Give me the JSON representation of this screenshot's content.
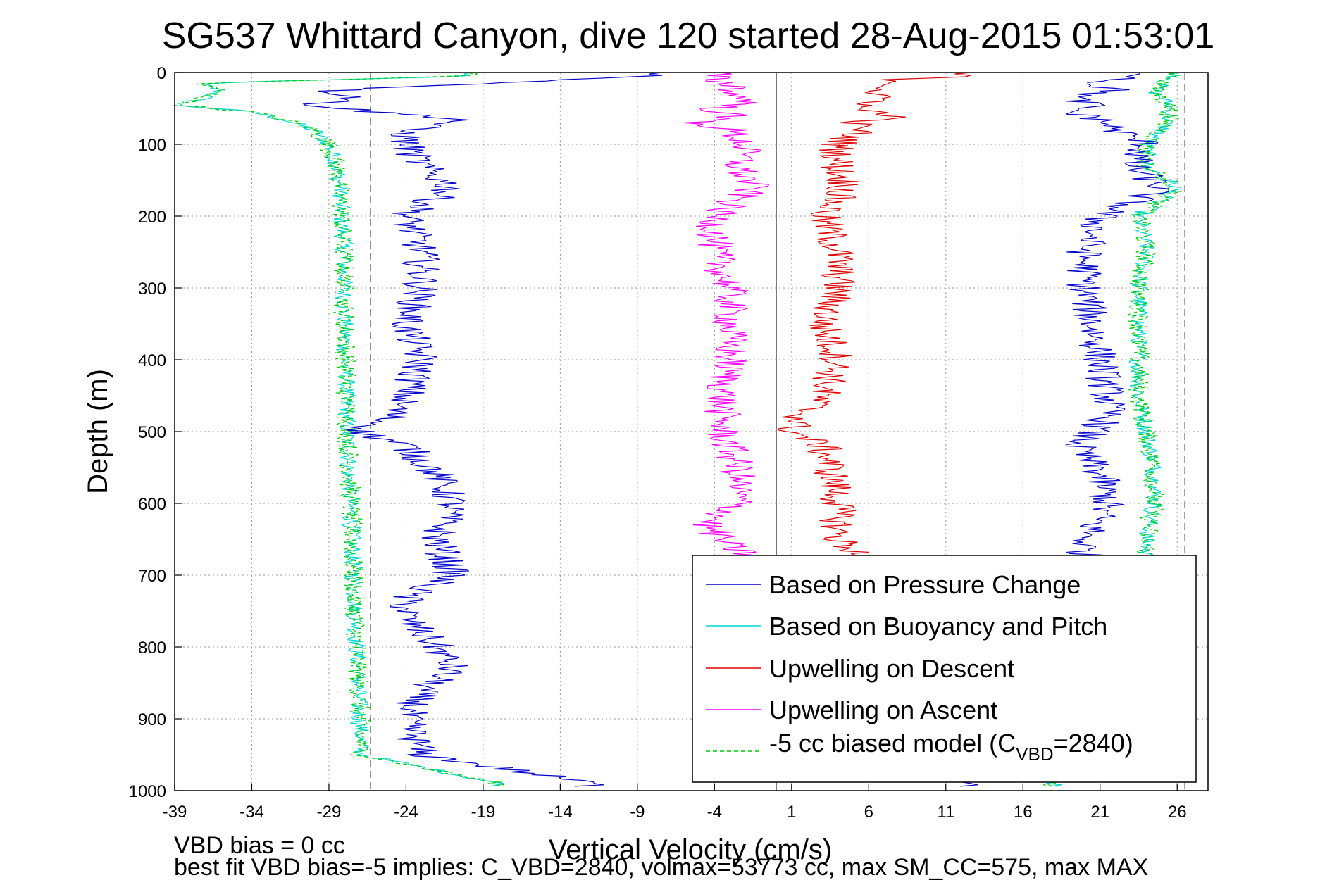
{
  "chart_data": {
    "type": "line",
    "title": "SG537 Whittard Canyon, dive 120 started 28-Aug-2015 01:53:01",
    "xlabel": "Vertical Velocity (cm/s)",
    "ylabel": "Depth (m)",
    "xlim": [
      -39,
      28
    ],
    "ylim": [
      0,
      1000
    ],
    "y_reversed": true,
    "grid": true,
    "x_ticks": [
      -39,
      -34,
      -29,
      -24,
      -19,
      -14,
      -9,
      -4,
      1,
      6,
      11,
      16,
      21,
      26
    ],
    "y_ticks": [
      0,
      100,
      200,
      300,
      400,
      500,
      600,
      700,
      800,
      900,
      1000
    ],
    "reference_lines": {
      "solid_x": 0,
      "dashed_x": [
        -26.3,
        26.5
      ]
    },
    "legend_position": "lower-right",
    "series": [
      {
        "name": "Based on Pressure Change",
        "color": "#0000cc",
        "style": "solid",
        "depth": [
          5,
          15,
          25,
          35,
          45,
          55,
          65,
          80,
          100,
          130,
          160,
          200,
          250,
          300,
          350,
          400,
          450,
          480,
          500,
          520,
          560,
          600,
          650,
          700,
          730,
          760,
          800,
          830,
          860,
          900,
          950,
          990
        ],
        "descent": [
          -8,
          -18,
          -29,
          -27,
          -30,
          -26,
          -20,
          -24,
          -24,
          -23,
          -21,
          -24,
          -23,
          -23,
          -24,
          -23,
          -24,
          -25,
          -27,
          -24,
          -22,
          -21,
          -22,
          -21,
          -24,
          -24,
          -22,
          -21,
          -23,
          -24,
          -23,
          -12
        ],
        "ascent": [
          24,
          20.5,
          22,
          19,
          20.5,
          19,
          21,
          22,
          24,
          23,
          25,
          21,
          20,
          20,
          20.5,
          21,
          21.5,
          21.5,
          20.5,
          19.5,
          21,
          21.5,
          20,
          20,
          20,
          20,
          20,
          20,
          20,
          20,
          20,
          12
        ]
      },
      {
        "name": "Based on Buoyancy and Pitch",
        "color": "#00d6d6",
        "style": "solid",
        "depth": [
          5,
          15,
          25,
          35,
          45,
          55,
          65,
          80,
          100,
          130,
          160,
          200,
          250,
          300,
          350,
          400,
          450,
          500,
          550,
          600,
          650,
          700,
          750,
          800,
          850,
          900,
          950,
          990
        ],
        "descent": [
          -20,
          -37.5,
          -36,
          -37,
          -39,
          -34,
          -32,
          -30,
          -29,
          -28.5,
          -28.3,
          -28.2,
          -28,
          -28,
          -28,
          -27.9,
          -27.9,
          -27.8,
          -27.7,
          -27.6,
          -27.5,
          -27.4,
          -27.3,
          -27.2,
          -27.1,
          -27.0,
          -26.9,
          -18
        ],
        "ascent": [
          26,
          25,
          24.5,
          25,
          25.5,
          25.5,
          25.4,
          25,
          24,
          24,
          26,
          23.5,
          24,
          23.5,
          23.5,
          23.5,
          23.5,
          24,
          24.5,
          24.5,
          24,
          24,
          24,
          24,
          24,
          24,
          24,
          18
        ]
      },
      {
        "name": "Upwelling on Descent",
        "color": "#e00000",
        "style": "solid",
        "depth": [
          5,
          10,
          20,
          30,
          40,
          50,
          60,
          70,
          80,
          100,
          130,
          160,
          200,
          250,
          300,
          350,
          400,
          450,
          480,
          500,
          520,
          550,
          600,
          650,
          680
        ],
        "values": [
          12,
          8,
          7.5,
          6,
          7,
          5,
          8,
          5,
          5.5,
          4,
          4,
          4.5,
          3,
          4,
          4,
          3,
          4,
          3,
          1.5,
          1,
          3,
          3.5,
          4,
          4,
          6
        ]
      },
      {
        "name": "Upwelling on Ascent",
        "color": "#ff00ff",
        "style": "solid",
        "depth": [
          10,
          20,
          30,
          40,
          50,
          60,
          70,
          80,
          100,
          130,
          160,
          200,
          250,
          300,
          350,
          400,
          450,
          500,
          550,
          600,
          630,
          660,
          680
        ],
        "values": [
          -4,
          -2.5,
          -3,
          -1.5,
          -4,
          -3,
          -5,
          -3,
          -2,
          -2.5,
          -1.5,
          -4,
          -4,
          -3,
          -3,
          -3,
          -3.5,
          -3.5,
          -2.5,
          -2.5,
          -4.5,
          -3,
          -1
        ]
      },
      {
        "name": "-5 cc biased model (C_VBD=2840)",
        "color": "#00cc00",
        "style": "dashed",
        "depth": [
          5,
          15,
          25,
          35,
          45,
          55,
          65,
          80,
          100,
          130,
          160,
          200,
          250,
          300,
          350,
          400,
          450,
          500,
          550,
          600,
          650,
          700,
          750,
          800,
          850,
          900,
          950,
          990
        ],
        "descent": [
          -20,
          -37.5,
          -36,
          -37,
          -39,
          -34,
          -32,
          -30,
          -29,
          -28.5,
          -28.3,
          -28.2,
          -28,
          -28,
          -28,
          -27.9,
          -27.9,
          -27.8,
          -27.7,
          -27.6,
          -27.5,
          -27.4,
          -27.3,
          -27.2,
          -27.1,
          -27.0,
          -26.9,
          -18
        ],
        "ascent": [
          26,
          25,
          24.5,
          25,
          25.5,
          25.5,
          25.4,
          25,
          24,
          24,
          26,
          23.5,
          24,
          23.5,
          23.5,
          23.5,
          23.5,
          24,
          24.5,
          24.5,
          24,
          24,
          24,
          24,
          24,
          24,
          24,
          18
        ]
      }
    ],
    "legend_labels": {
      "l1": "Based on Pressure Change",
      "l2": "Based on Buoyancy and Pitch",
      "l3": "Upwelling on Descent",
      "l4": "Upwelling on Ascent",
      "l5_prefix": "-5 cc biased model (C",
      "l5_sub": "VBD",
      "l5_suffix": "=2840)"
    },
    "annotations": {
      "bias_line": "VBD bias = 0 cc",
      "fit_line": "best fit VBD bias=-5 implies: C_VBD=2840, volmax=53773 cc, max SM_CC=575, max MAX"
    }
  }
}
